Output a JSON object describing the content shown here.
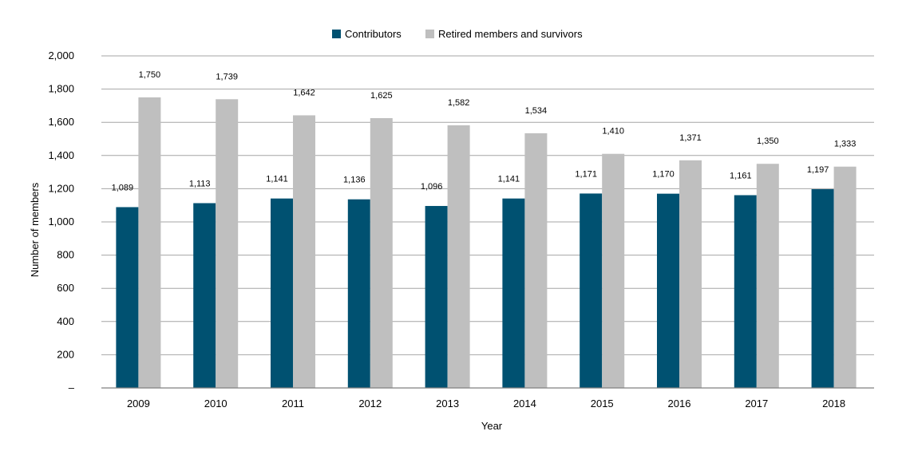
{
  "chart_data": {
    "type": "bar",
    "categories": [
      "2009",
      "2010",
      "2011",
      "2012",
      "2013",
      "2014",
      "2015",
      "2016",
      "2017",
      "2018"
    ],
    "series": [
      {
        "name": "Contributors",
        "color": "#005171",
        "values": [
          1089,
          1113,
          1141,
          1136,
          1096,
          1141,
          1171,
          1170,
          1161,
          1197
        ],
        "labels": [
          "1,089",
          "1,113",
          "1,141",
          "1,136",
          "1,096",
          "1,141",
          "1,171",
          "1,170",
          "1,161",
          "1,197"
        ]
      },
      {
        "name": "Retired members and survivors",
        "color": "#bfbfbf",
        "values": [
          1750,
          1739,
          1642,
          1625,
          1582,
          1534,
          1410,
          1371,
          1350,
          1333
        ],
        "labels": [
          "1,750",
          "1,739",
          "1,642",
          "1,625",
          "1,582",
          "1,534",
          "1,410",
          "1,371",
          "1,350",
          "1,333"
        ]
      }
    ],
    "xlabel": "Year",
    "ylabel": "Number of members",
    "ylim": [
      0,
      2000
    ],
    "yticks": [
      0,
      200,
      400,
      600,
      800,
      1000,
      1200,
      1400,
      1600,
      1800,
      2000
    ],
    "ytick_labels": [
      "–",
      "200",
      "400",
      "600",
      "800",
      "1,000",
      "1,200",
      "1,400",
      "1,600",
      "1,800",
      "2,000"
    ],
    "grid": "horizontal",
    "legend_position": "top-center"
  }
}
